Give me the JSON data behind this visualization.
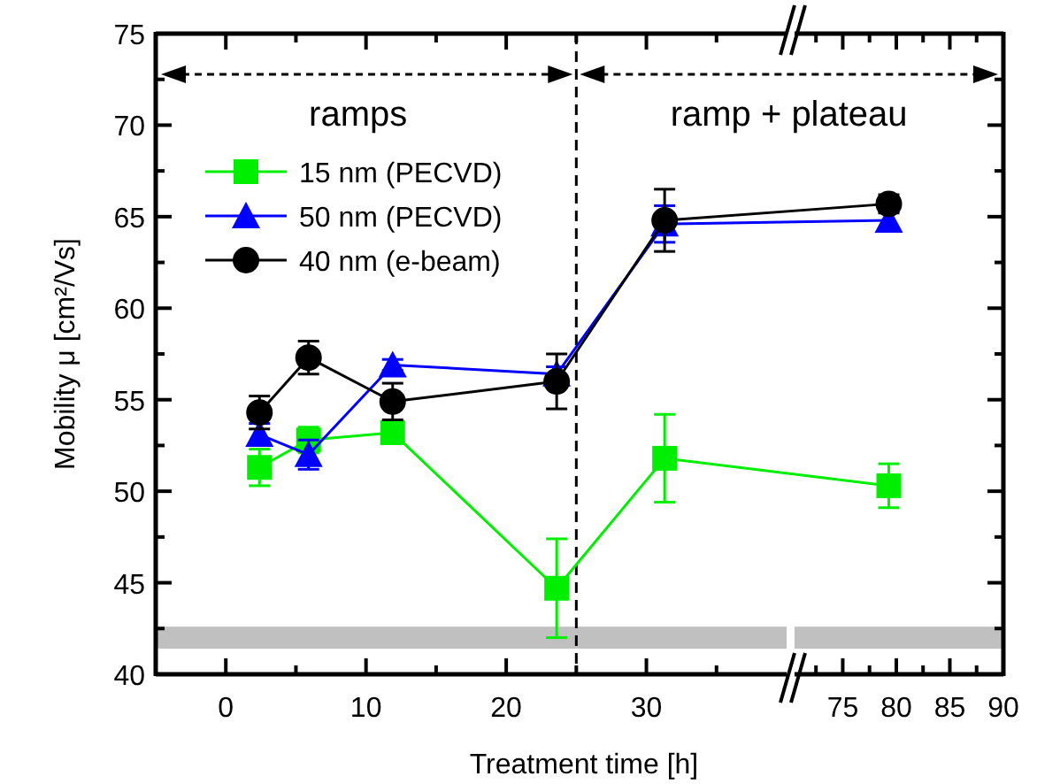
{
  "chart_data": [
    {
      "type": "line",
      "xlabel": "Treatment time [h]",
      "ylabel": "Mobility μ [cm²/Vs]",
      "annotations": [
        "ramps",
        "ramp + plateau"
      ],
      "xlim": [
        -5,
        40
      ],
      "xticks": [
        0,
        {
          "value": 5,
          "label": null
        },
        10,
        {
          "value": 15,
          "label": null
        },
        20,
        {
          "value": 25,
          "label": null
        },
        30,
        {
          "value": 35,
          "label": null
        }
      ],
      "ylim": [
        40,
        75
      ],
      "yticks": [
        40,
        {
          "value": 42.5,
          "label": null
        },
        45,
        {
          "value": 47.5,
          "label": null
        },
        50,
        {
          "value": 52.5,
          "label": null
        },
        55,
        {
          "value": 57.5,
          "label": null
        },
        60,
        {
          "value": 62.5,
          "label": null
        },
        65,
        {
          "value": 67.5,
          "label": null
        },
        70,
        {
          "value": 72.5,
          "label": null
        },
        75
      ],
      "legend": "top left",
      "grid": false,
      "ref_lines": [
        {
          "axis": "x",
          "value": 25,
          "color": "#000000",
          "line_style": "dashed"
        }
      ],
      "bands": [
        {
          "axis": "y",
          "from": 41.4,
          "to": 42.6,
          "color": "#c0c0c0"
        }
      ],
      "series": [
        {
          "name": "15 nm (PECVD)",
          "color": "#00ee00",
          "marker": "square",
          "x": [
            2.4,
            5.9,
            11.9,
            23.6,
            31.3
          ],
          "values": [
            51.3,
            52.8,
            53.2,
            44.7,
            51.8
          ],
          "errors": [
            1.0,
            0.7,
            0.4,
            2.7,
            2.4
          ]
        },
        {
          "name": "50 nm (PECVD)",
          "color": "#0000ff",
          "marker": "triangle",
          "x": [
            2.4,
            5.9,
            11.9,
            23.6,
            31.3
          ],
          "values": [
            53.1,
            52.0,
            56.9,
            56.4,
            64.6
          ],
          "errors": [
            0.6,
            0.8,
            0.3,
            0.4,
            1.0
          ]
        },
        {
          "name": "40 nm (e-beam)",
          "color": "#000000",
          "marker": "circle",
          "x": [
            2.4,
            5.9,
            11.9,
            23.6,
            31.3
          ],
          "values": [
            54.3,
            57.3,
            54.9,
            56.0,
            64.8
          ],
          "errors": [
            0.9,
            0.9,
            1.0,
            1.5,
            1.7
          ]
        }
      ]
    },
    {
      "type": "line",
      "tick_labels": "x",
      "xlim": [
        70.5,
        90
      ],
      "xticks": [
        {
          "value": 72.5,
          "label": null
        },
        75,
        {
          "value": 77.5,
          "label": null
        },
        80,
        {
          "value": 82.5,
          "label": null
        },
        85,
        {
          "value": 87.5,
          "label": null
        },
        90
      ],
      "ylim": [
        40,
        75
      ],
      "yticks": [
        40,
        {
          "value": 42.5,
          "label": null
        },
        45,
        {
          "value": 47.5,
          "label": null
        },
        50,
        {
          "value": 52.5,
          "label": null
        },
        55,
        {
          "value": 57.5,
          "label": null
        },
        60,
        {
          "value": 62.5,
          "label": null
        },
        65,
        {
          "value": 67.5,
          "label": null
        },
        70,
        {
          "value": 72.5,
          "label": null
        },
        75
      ],
      "grid": false,
      "bands": [
        {
          "axis": "y",
          "from": 41.4,
          "to": 42.6,
          "color": "#c0c0c0"
        }
      ],
      "series": [
        {
          "color": "#00ee00",
          "marker": "square",
          "x": [
            79.3
          ],
          "values": [
            50.3
          ],
          "errors": [
            1.2
          ]
        },
        {
          "color": "#0000ff",
          "marker": "triangle",
          "x": [
            79.3
          ],
          "values": [
            64.8
          ],
          "errors": [
            0.5
          ]
        },
        {
          "color": "#000000",
          "marker": "circle",
          "x": [
            79.3
          ],
          "values": [
            65.7
          ],
          "errors": [
            0.5
          ]
        }
      ]
    }
  ]
}
